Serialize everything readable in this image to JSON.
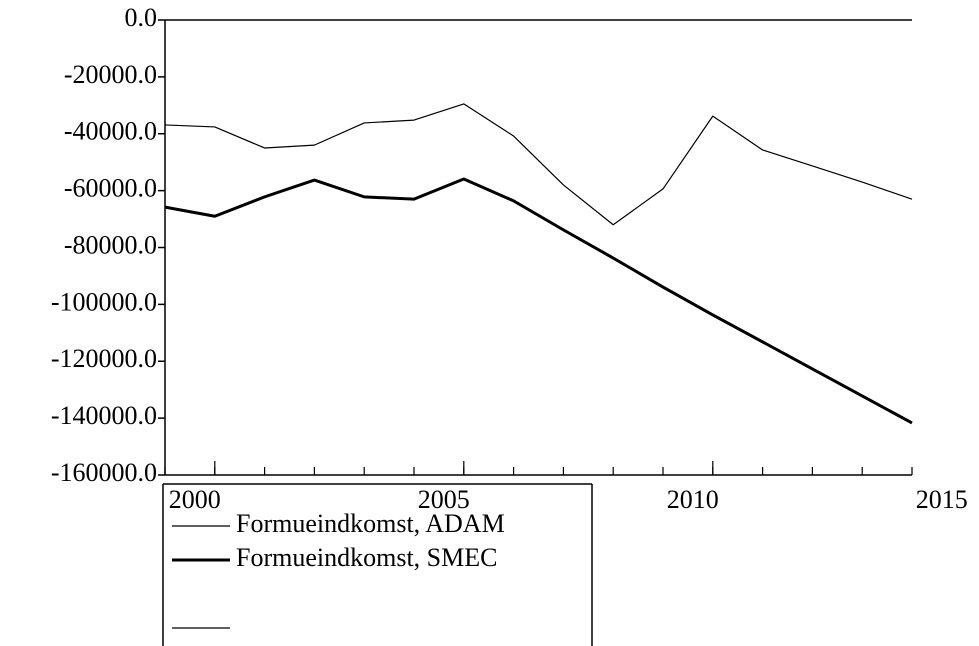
{
  "chart_data": {
    "type": "line",
    "x": [
      1999,
      2000,
      2001,
      2002,
      2003,
      2004,
      2005,
      2006,
      2007,
      2008,
      2009,
      2010,
      2011,
      2012,
      2013,
      2014
    ],
    "xlim": [
      1999,
      2014
    ],
    "xticks": [
      2000,
      2005,
      2010,
      2015
    ],
    "ylim": [
      -160000,
      0
    ],
    "yticks": [
      {
        "value": 0,
        "label": "0.0"
      },
      {
        "value": -20000,
        "label": "-20000.0"
      },
      {
        "value": -40000,
        "label": "-40000.0"
      },
      {
        "value": -60000,
        "label": "-60000.0"
      },
      {
        "value": -80000,
        "label": "-80000.0"
      },
      {
        "value": -100000,
        "label": "-100000.0"
      },
      {
        "value": -120000,
        "label": "-120000.0"
      },
      {
        "value": -140000,
        "label": "-140000.0"
      },
      {
        "value": -160000,
        "label": "-160000.0"
      }
    ],
    "series": [
      {
        "name": "Formueindkomst, ADAM",
        "color": "#000000",
        "width": 1.2,
        "values": [
          -36900,
          -37600,
          -45000,
          -44000,
          -36200,
          -35200,
          -29500,
          -40800,
          -58000,
          -72000,
          -59400,
          -33800,
          -45700,
          -51300,
          -57000,
          -63000
        ]
      },
      {
        "name": "Formueindkomst, SMEC",
        "color": "#000000",
        "width": 3,
        "values": [
          -65800,
          -69000,
          -62200,
          -56300,
          -62200,
          -63000,
          -55900,
          -63600,
          -73800,
          -83700,
          -93900,
          -103700,
          -113200,
          -122700,
          -132200,
          -141700
        ]
      }
    ]
  }
}
